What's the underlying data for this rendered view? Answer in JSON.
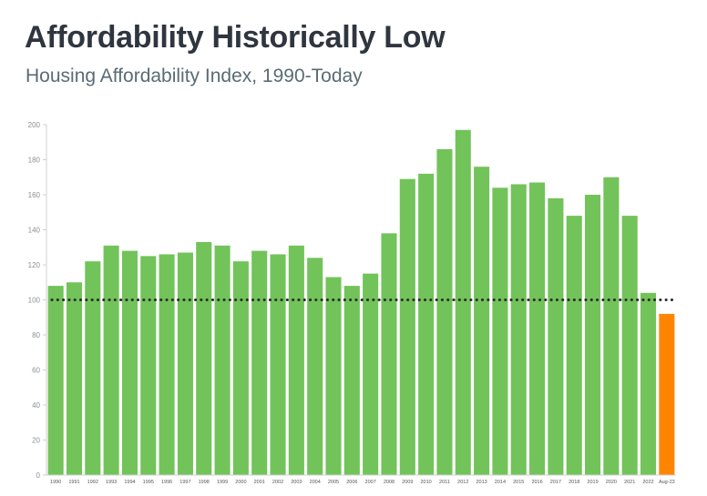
{
  "header": {
    "title": "Affordability Historically Low",
    "subtitle": "Housing Affordability Index, 1990-Today"
  },
  "chart_data": {
    "type": "bar",
    "title": "Affordability Historically Low",
    "subtitle": "Housing Affordability Index, 1990-Today",
    "xlabel": "",
    "ylabel": "",
    "ylim": [
      0,
      200
    ],
    "yticks": [
      0,
      20,
      40,
      60,
      80,
      100,
      120,
      140,
      160,
      180,
      200
    ],
    "grid": false,
    "legend": "none",
    "categories": [
      "1990",
      "1991",
      "1992",
      "1993",
      "1994",
      "1995",
      "1996",
      "1997",
      "1998",
      "1999",
      "2000",
      "2001",
      "2002",
      "2003",
      "2004",
      "2005",
      "2006",
      "2007",
      "2008",
      "2009",
      "2010",
      "2011",
      "2012",
      "2013",
      "2014",
      "2015",
      "2016",
      "2017",
      "2018",
      "2019",
      "2020",
      "2021",
      "2022",
      "Aug-23"
    ],
    "values": [
      108,
      110,
      122,
      131,
      128,
      125,
      126,
      127,
      133,
      131,
      122,
      128,
      126,
      131,
      124,
      113,
      108,
      115,
      138,
      169,
      172,
      186,
      197,
      176,
      164,
      166,
      167,
      158,
      148,
      160,
      170,
      148,
      104,
      92
    ],
    "reference_line": {
      "value": 100,
      "style": "dotted",
      "color": "#2b2b2b"
    },
    "colors": {
      "default": "#72c35a",
      "highlight": "#ff8500",
      "highlight_index": 33
    }
  }
}
